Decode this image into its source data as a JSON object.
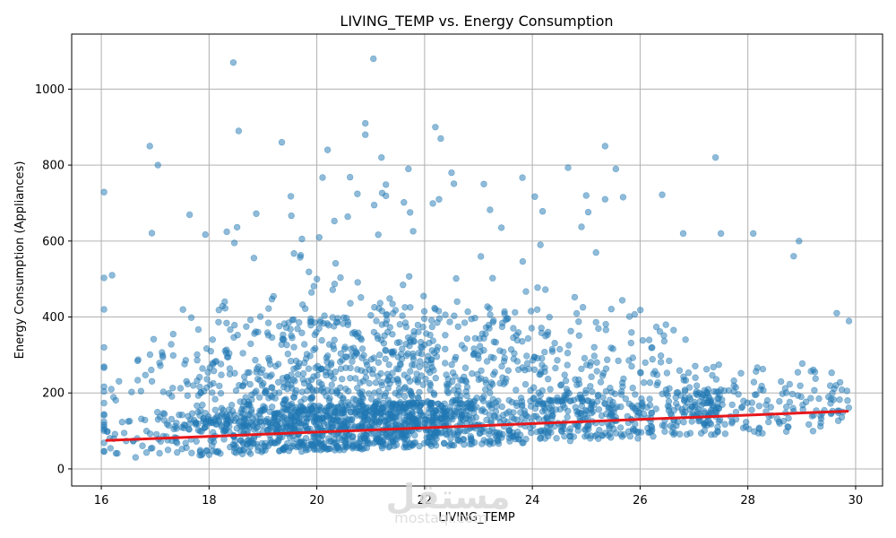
{
  "chart_data": {
    "type": "scatter",
    "title": "LIVING_TEMP vs. Energy Consumption",
    "xlabel": "LIVING_TEMP",
    "ylabel": "Energy Consumption (Appliances)",
    "xlim": [
      15.45,
      30.5
    ],
    "ylim": [
      -45,
      1145
    ],
    "xticks": [
      16,
      18,
      20,
      22,
      24,
      26,
      28,
      30
    ],
    "yticks": [
      0,
      200,
      400,
      600,
      800,
      1000
    ],
    "grid": true,
    "point_color": "#1f77b4",
    "point_alpha": 0.5,
    "trend_line": {
      "color": "#e8171b",
      "points": [
        [
          16.1,
          75
        ],
        [
          29.85,
          152
        ]
      ]
    },
    "notable_points": [
      [
        18.45,
        1070
      ],
      [
        21.05,
        1080
      ],
      [
        18.55,
        890
      ],
      [
        19.35,
        860
      ],
      [
        20.9,
        910
      ],
      [
        20.9,
        880
      ],
      [
        22.2,
        900
      ],
      [
        22.3,
        870
      ],
      [
        16.9,
        850
      ],
      [
        17.05,
        800
      ],
      [
        20.2,
        840
      ],
      [
        21.2,
        820
      ],
      [
        25.35,
        850
      ],
      [
        25.55,
        790
      ],
      [
        27.4,
        820
      ],
      [
        26.8,
        620
      ],
      [
        27.5,
        620
      ],
      [
        28.1,
        620
      ],
      [
        28.95,
        600
      ],
      [
        28.85,
        560
      ],
      [
        29.65,
        410
      ],
      [
        29.85,
        180
      ],
      [
        16.05,
        420
      ],
      [
        16.2,
        510
      ],
      [
        21.7,
        790
      ],
      [
        23.1,
        750
      ],
      [
        22.5,
        780
      ],
      [
        24.15,
        590
      ],
      [
        25.0,
        720
      ],
      [
        25.35,
        710
      ]
    ]
  },
  "watermark": {
    "main": "مستقل",
    "sub": "mostaql.com"
  }
}
